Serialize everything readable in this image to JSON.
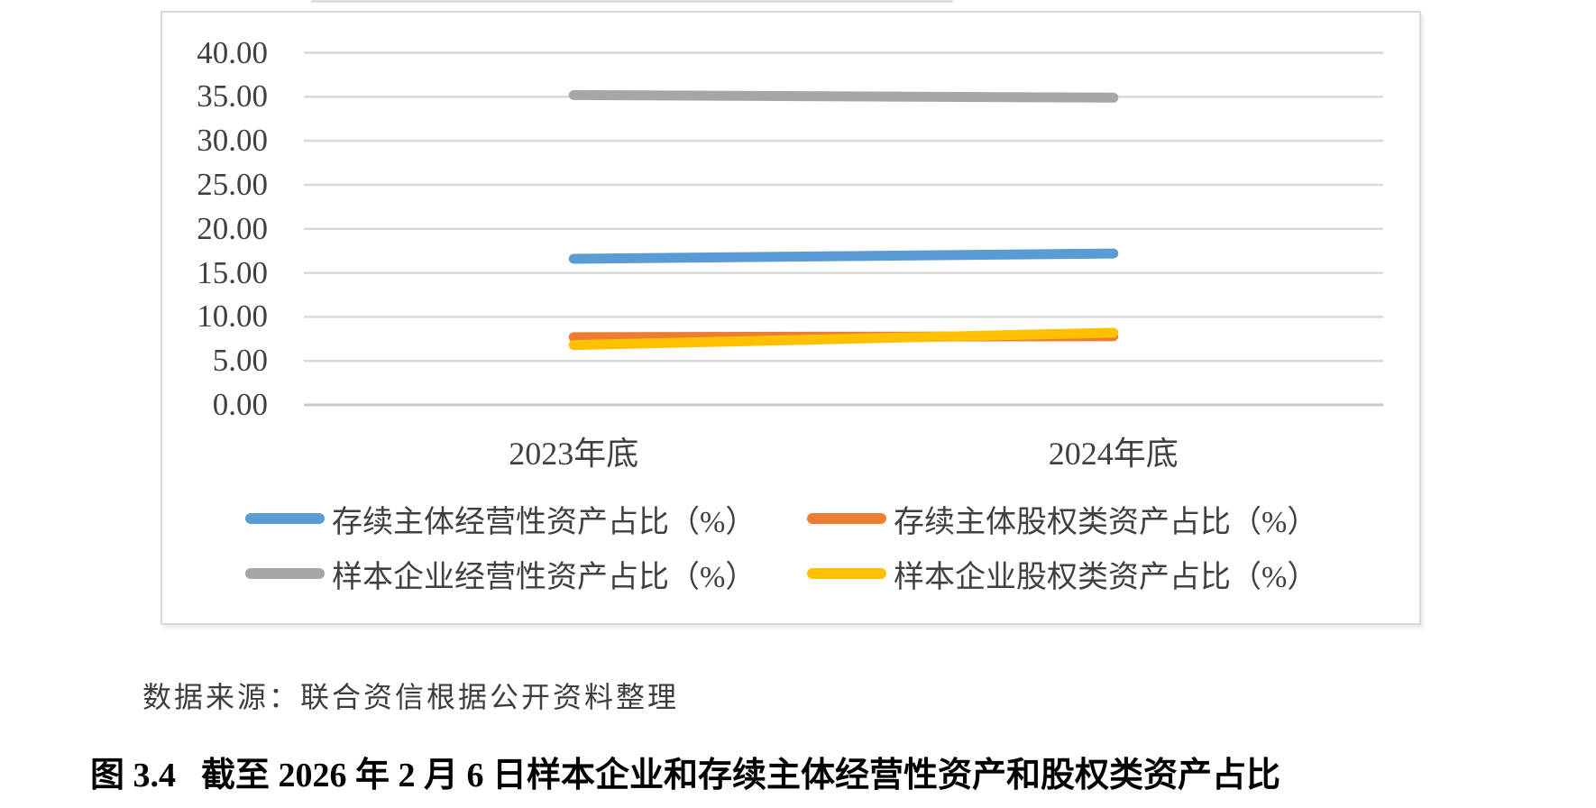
{
  "figure": {
    "source_note": "数据来源：联合资信根据公开资料整理",
    "caption_label": "图 3.4",
    "caption_text": "截至 2026 年 2 月 6 日样本企业和存续主体经营性资产和股权类资产占比"
  },
  "chart_data": {
    "type": "line",
    "title": "",
    "xlabel": "",
    "ylabel": "",
    "categories": [
      "2023年底",
      "2024年底"
    ],
    "series": [
      {
        "name": "存续主体经营性资产占比（%）",
        "color": "#5b9bd5",
        "values": [
          16.6,
          17.2
        ]
      },
      {
        "name": "存续主体股权类资产占比（%）",
        "color": "#ed7d31",
        "values": [
          7.7,
          7.8
        ]
      },
      {
        "name": "样本企业经营性资产占比（%）",
        "color": "#a6a6a6",
        "values": [
          35.2,
          34.9
        ]
      },
      {
        "name": "样本企业股权类资产占比（%）",
        "color": "#ffc000",
        "values": [
          6.8,
          8.2
        ]
      }
    ],
    "ylim": [
      0,
      40
    ],
    "ytick_step": 5,
    "ytick_labels": [
      "0.00",
      "5.00",
      "10.00",
      "15.00",
      "20.00",
      "25.00",
      "30.00",
      "35.00",
      "40.00"
    ],
    "grid": true,
    "gridline_color": "#d9d9d9",
    "baseline_color": "#c9c9c9",
    "axis_text_color": "#404040",
    "legend_position": "bottom",
    "legend_layout": [
      [
        0,
        1
      ],
      [
        2,
        3
      ]
    ],
    "line_width": 11
  }
}
